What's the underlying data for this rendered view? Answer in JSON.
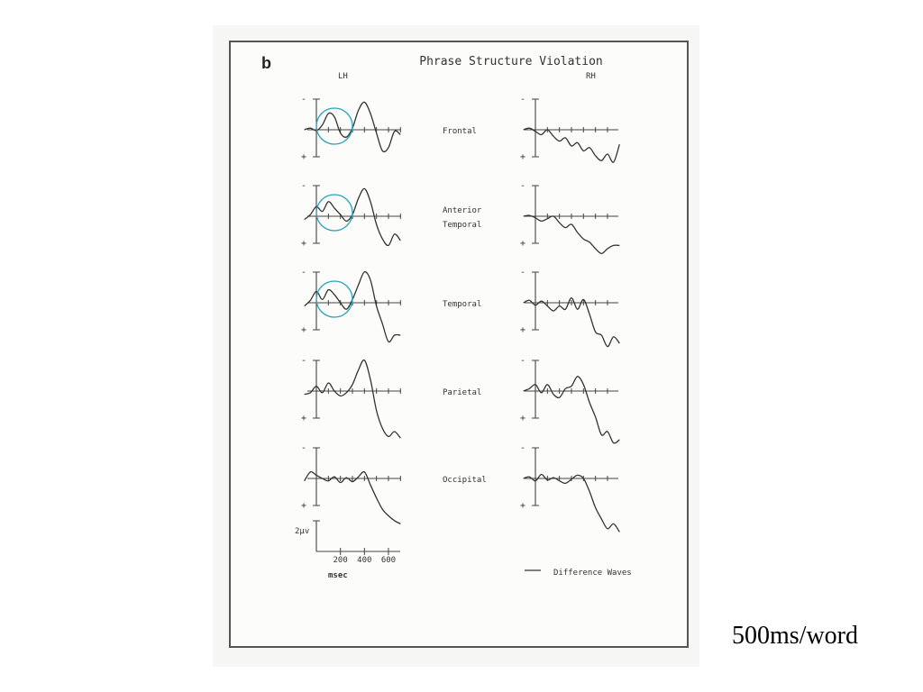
{
  "slide": {
    "caption": "500ms/word"
  },
  "figure": {
    "panel_letter": "b",
    "title": "Phrase Structure Violation",
    "left_header": "LH",
    "right_header": "RH",
    "polarity": {
      "negative": "-",
      "positive": "+"
    },
    "scale": {
      "amplitude": "2µv",
      "time_ticks": [
        "200",
        "400",
        "600"
      ],
      "time_unit": "msec"
    },
    "legend": "Difference Waves",
    "highlight_color": "#2aa4b8",
    "trace_color": "#333333"
  },
  "chart_data": {
    "type": "line",
    "title": "Phrase Structure Violation",
    "xlabel": "msec",
    "ylabel": "2µv",
    "x_ticks": [
      200,
      400,
      600
    ],
    "xlim": [
      -100,
      720
    ],
    "y_axis_note": "negative plotted up",
    "legend": [
      "Difference Waves"
    ],
    "x": [
      -100,
      -50,
      0,
      50,
      100,
      150,
      200,
      250,
      300,
      350,
      400,
      450,
      500,
      550,
      600,
      650,
      700
    ],
    "rows": [
      {
        "label": "Frontal",
        "LH": [
          0,
          0.2,
          -0.1,
          0.6,
          2.0,
          1.6,
          -0.4,
          -0.9,
          0.2,
          2.4,
          3.4,
          2.0,
          -0.4,
          -2.6,
          -2.2,
          -0.2,
          -0.6
        ],
        "RH": [
          0,
          0.2,
          -0.2,
          -0.6,
          0.0,
          -0.8,
          -1.4,
          -1.0,
          -2.0,
          -1.6,
          -2.6,
          -2.2,
          -3.2,
          -3.8,
          -3.0,
          -4.0,
          -1.8
        ]
      },
      {
        "label": "Anterior\nTemporal",
        "LH": [
          -0.4,
          0.2,
          1.2,
          0.6,
          1.8,
          1.0,
          0.2,
          -0.6,
          0.2,
          2.2,
          3.4,
          1.8,
          -1.0,
          -2.8,
          -3.6,
          -2.2,
          -3.0
        ],
        "RH": [
          0,
          0.1,
          -0.2,
          -0.6,
          -0.3,
          0.0,
          -0.8,
          -1.4,
          -1.0,
          -2.0,
          -2.8,
          -3.2,
          -4.0,
          -4.6,
          -4.0,
          -3.6,
          -3.6
        ]
      },
      {
        "label": "Temporal",
        "LH": [
          -0.4,
          0.3,
          1.4,
          0.4,
          1.6,
          1.0,
          0.0,
          -0.8,
          0.4,
          2.2,
          3.8,
          2.8,
          -0.4,
          -2.6,
          -4.8,
          -4.0,
          -4.0
        ],
        "RH": [
          0,
          0.3,
          -0.3,
          0.2,
          -0.4,
          -1.0,
          -0.4,
          -0.8,
          0.6,
          -0.8,
          0.4,
          -1.4,
          -3.6,
          -4.0,
          -5.4,
          -4.2,
          -5.0
        ]
      },
      {
        "label": "Parietal",
        "LH": [
          -0.4,
          -0.2,
          0.6,
          -0.2,
          1.0,
          0.0,
          -0.6,
          -0.2,
          0.8,
          2.6,
          3.8,
          1.4,
          -2.4,
          -4.6,
          -5.6,
          -5.0,
          -5.8
        ],
        "RH": [
          0,
          0.3,
          0.8,
          -0.2,
          0.8,
          -0.4,
          -0.8,
          0.3,
          0.6,
          1.8,
          0.8,
          -1.4,
          -3.2,
          -5.4,
          -5.0,
          -6.4,
          -6.0
        ]
      },
      {
        "label": "Occipital",
        "LH": [
          -0.3,
          0.8,
          0.4,
          0.0,
          -0.3,
          0.2,
          -0.5,
          0.1,
          -0.4,
          0.2,
          0.8,
          -0.8,
          -2.4,
          -3.8,
          -4.6,
          -5.2,
          -5.6
        ],
        "RH": [
          0,
          0.2,
          -0.3,
          0.5,
          -0.2,
          0.1,
          -0.3,
          -0.6,
          -0.1,
          0.4,
          0.0,
          -1.6,
          -3.6,
          -5.0,
          -6.2,
          -5.6,
          -6.6
        ]
      }
    ]
  }
}
